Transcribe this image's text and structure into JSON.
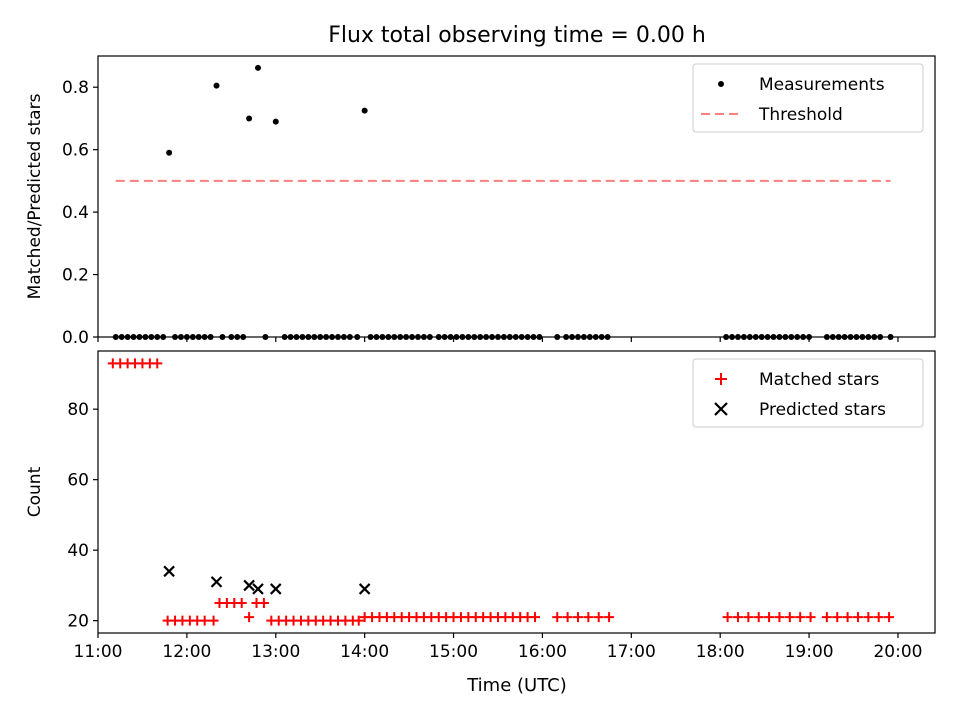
{
  "figure": {
    "title": "Flux total observing time = 0.00 h",
    "xlabel": "Time (UTC)"
  },
  "colors": {
    "measurement": "#000000",
    "threshold": "#ff7f7f",
    "matched": "#ff0000",
    "predicted": "#000000",
    "axes": "#000000",
    "legend_border": "#cccccc"
  },
  "chart_data": [
    {
      "type": "scatter",
      "panel": "top",
      "ylabel": "Matched/Predicted stars",
      "xlim": [
        "11:00",
        "20:25"
      ],
      "ylim": [
        0,
        0.9
      ],
      "yticks": [
        0.0,
        0.2,
        0.4,
        0.6,
        0.8
      ],
      "ytick_labels": [
        "0.0",
        "0.2",
        "0.4",
        "0.6",
        "0.8"
      ],
      "xticks": [
        "11:00",
        "12:00",
        "13:00",
        "14:00",
        "15:00",
        "16:00",
        "17:00",
        "18:00",
        "19:00",
        "20:00"
      ],
      "show_xtick_labels": false,
      "grid": false,
      "legend_position": "top-right",
      "series": [
        {
          "name": "Measurements",
          "marker": "dot",
          "points": [
            [
              "11:12",
              0
            ],
            [
              "11:16",
              0
            ],
            [
              "11:20",
              0
            ],
            [
              "11:24",
              0
            ],
            [
              "11:28",
              0
            ],
            [
              "11:32",
              0
            ],
            [
              "11:36",
              0
            ],
            [
              "11:40",
              0
            ],
            [
              "11:44",
              0
            ],
            [
              "11:48",
              0.59
            ],
            [
              "11:52",
              0
            ],
            [
              "11:56",
              0
            ],
            [
              "12:00",
              0
            ],
            [
              "12:04",
              0
            ],
            [
              "12:08",
              0
            ],
            [
              "12:12",
              0
            ],
            [
              "12:16",
              0
            ],
            [
              "12:20",
              0.805
            ],
            [
              "12:24",
              0
            ],
            [
              "12:30",
              0
            ],
            [
              "12:34",
              0
            ],
            [
              "12:38",
              0
            ],
            [
              "12:42",
              0.7
            ],
            [
              "12:48",
              0.862
            ],
            [
              "12:53",
              0
            ],
            [
              "13:00",
              0.69
            ],
            [
              "13:06",
              0
            ],
            [
              "13:10",
              0
            ],
            [
              "13:14",
              0
            ],
            [
              "13:18",
              0
            ],
            [
              "13:22",
              0
            ],
            [
              "13:26",
              0
            ],
            [
              "13:30",
              0
            ],
            [
              "13:34",
              0
            ],
            [
              "13:38",
              0
            ],
            [
              "13:42",
              0
            ],
            [
              "13:46",
              0
            ],
            [
              "13:50",
              0
            ],
            [
              "13:55",
              0
            ],
            [
              "14:00",
              0.725
            ],
            [
              "14:04",
              0
            ],
            [
              "14:08",
              0
            ],
            [
              "14:12",
              0
            ],
            [
              "14:16",
              0
            ],
            [
              "14:20",
              0
            ],
            [
              "14:24",
              0
            ],
            [
              "14:28",
              0
            ],
            [
              "14:32",
              0
            ],
            [
              "14:36",
              0
            ],
            [
              "14:40",
              0
            ],
            [
              "14:44",
              0
            ],
            [
              "14:50",
              0
            ],
            [
              "14:54",
              0
            ],
            [
              "14:58",
              0
            ],
            [
              "15:02",
              0
            ],
            [
              "15:06",
              0
            ],
            [
              "15:10",
              0
            ],
            [
              "15:14",
              0
            ],
            [
              "15:18",
              0
            ],
            [
              "15:22",
              0
            ],
            [
              "15:26",
              0
            ],
            [
              "15:30",
              0
            ],
            [
              "15:34",
              0
            ],
            [
              "15:38",
              0
            ],
            [
              "15:42",
              0
            ],
            [
              "15:46",
              0
            ],
            [
              "15:50",
              0
            ],
            [
              "15:54",
              0
            ],
            [
              "15:58",
              0
            ],
            [
              "16:10",
              0
            ],
            [
              "16:16",
              0
            ],
            [
              "16:20",
              0
            ],
            [
              "16:24",
              0
            ],
            [
              "16:28",
              0
            ],
            [
              "16:32",
              0
            ],
            [
              "16:36",
              0
            ],
            [
              "16:40",
              0
            ],
            [
              "16:44",
              0
            ],
            [
              "18:04",
              0
            ],
            [
              "18:08",
              0
            ],
            [
              "18:12",
              0
            ],
            [
              "18:16",
              0
            ],
            [
              "18:20",
              0
            ],
            [
              "18:24",
              0
            ],
            [
              "18:28",
              0
            ],
            [
              "18:32",
              0
            ],
            [
              "18:36",
              0
            ],
            [
              "18:40",
              0
            ],
            [
              "18:44",
              0
            ],
            [
              "18:48",
              0
            ],
            [
              "18:52",
              0
            ],
            [
              "18:56",
              0
            ],
            [
              "19:00",
              0
            ],
            [
              "19:12",
              0
            ],
            [
              "19:16",
              0
            ],
            [
              "19:20",
              0
            ],
            [
              "19:24",
              0
            ],
            [
              "19:28",
              0
            ],
            [
              "19:32",
              0
            ],
            [
              "19:36",
              0
            ],
            [
              "19:40",
              0
            ],
            [
              "19:44",
              0
            ],
            [
              "19:48",
              0
            ],
            [
              "19:55",
              0
            ]
          ]
        },
        {
          "name": "Threshold",
          "style": "dashed-line",
          "points": [
            [
              "11:12",
              0.5
            ],
            [
              "19:55",
              0.5
            ]
          ]
        }
      ]
    },
    {
      "type": "scatter",
      "panel": "bottom",
      "ylabel": "Count",
      "xlabel": "Time (UTC)",
      "xlim": [
        "11:00",
        "20:25"
      ],
      "ylim": [
        16.5,
        96.5
      ],
      "yticks": [
        20,
        40,
        60,
        80
      ],
      "ytick_labels": [
        "20",
        "40",
        "60",
        "80"
      ],
      "xticks": [
        "11:00",
        "12:00",
        "13:00",
        "14:00",
        "15:00",
        "16:00",
        "17:00",
        "18:00",
        "19:00",
        "20:00"
      ],
      "xtick_labels": [
        "11:00",
        "12:00",
        "13:00",
        "14:00",
        "15:00",
        "16:00",
        "17:00",
        "18:00",
        "19:00",
        "20:00"
      ],
      "grid": false,
      "legend_position": "top-right",
      "series": [
        {
          "name": "Matched stars",
          "marker": "plus",
          "points": [
            [
              "11:10",
              93
            ],
            [
              "11:15",
              93
            ],
            [
              "11:20",
              93
            ],
            [
              "11:25",
              93
            ],
            [
              "11:30",
              93
            ],
            [
              "11:35",
              93
            ],
            [
              "11:40",
              93
            ],
            [
              "11:47",
              20
            ],
            [
              "11:52",
              20
            ],
            [
              "11:57",
              20
            ],
            [
              "12:02",
              20
            ],
            [
              "12:07",
              20
            ],
            [
              "12:12",
              20
            ],
            [
              "12:18",
              20
            ],
            [
              "12:22",
              25
            ],
            [
              "12:27",
              25
            ],
            [
              "12:32",
              25
            ],
            [
              "12:37",
              25
            ],
            [
              "12:42",
              21
            ],
            [
              "12:47",
              25
            ],
            [
              "12:52",
              25
            ],
            [
              "12:57",
              20
            ],
            [
              "13:02",
              20
            ],
            [
              "13:07",
              20
            ],
            [
              "13:12",
              20
            ],
            [
              "13:17",
              20
            ],
            [
              "13:22",
              20
            ],
            [
              "13:27",
              20
            ],
            [
              "13:32",
              20
            ],
            [
              "13:37",
              20
            ],
            [
              "13:42",
              20
            ],
            [
              "13:47",
              20
            ],
            [
              "13:52",
              20
            ],
            [
              "13:56",
              20
            ],
            [
              "14:00",
              21
            ],
            [
              "14:05",
              21
            ],
            [
              "14:10",
              21
            ],
            [
              "14:15",
              21
            ],
            [
              "14:20",
              21
            ],
            [
              "14:25",
              21
            ],
            [
              "14:30",
              21
            ],
            [
              "14:35",
              21
            ],
            [
              "14:40",
              21
            ],
            [
              "14:45",
              21
            ],
            [
              "14:50",
              21
            ],
            [
              "14:55",
              21
            ],
            [
              "15:00",
              21
            ],
            [
              "15:05",
              21
            ],
            [
              "15:10",
              21
            ],
            [
              "15:15",
              21
            ],
            [
              "15:20",
              21
            ],
            [
              "15:25",
              21
            ],
            [
              "15:30",
              21
            ],
            [
              "15:35",
              21
            ],
            [
              "15:40",
              21
            ],
            [
              "15:45",
              21
            ],
            [
              "15:50",
              21
            ],
            [
              "15:55",
              21
            ],
            [
              "16:10",
              21
            ],
            [
              "16:17",
              21
            ],
            [
              "16:24",
              21
            ],
            [
              "16:31",
              21
            ],
            [
              "16:38",
              21
            ],
            [
              "16:45",
              21
            ],
            [
              "18:05",
              21
            ],
            [
              "18:12",
              21
            ],
            [
              "18:19",
              21
            ],
            [
              "18:26",
              21
            ],
            [
              "18:33",
              21
            ],
            [
              "18:40",
              21
            ],
            [
              "18:47",
              21
            ],
            [
              "18:54",
              21
            ],
            [
              "19:01",
              21
            ],
            [
              "19:12",
              21
            ],
            [
              "19:19",
              21
            ],
            [
              "19:26",
              21
            ],
            [
              "19:33",
              21
            ],
            [
              "19:40",
              21
            ],
            [
              "19:47",
              21
            ],
            [
              "19:54",
              21
            ]
          ]
        },
        {
          "name": "Predicted stars",
          "marker": "x",
          "points": [
            [
              "11:48",
              34
            ],
            [
              "12:20",
              31
            ],
            [
              "12:42",
              30
            ],
            [
              "12:48",
              29
            ],
            [
              "13:00",
              29
            ],
            [
              "14:00",
              29
            ]
          ]
        }
      ]
    }
  ]
}
